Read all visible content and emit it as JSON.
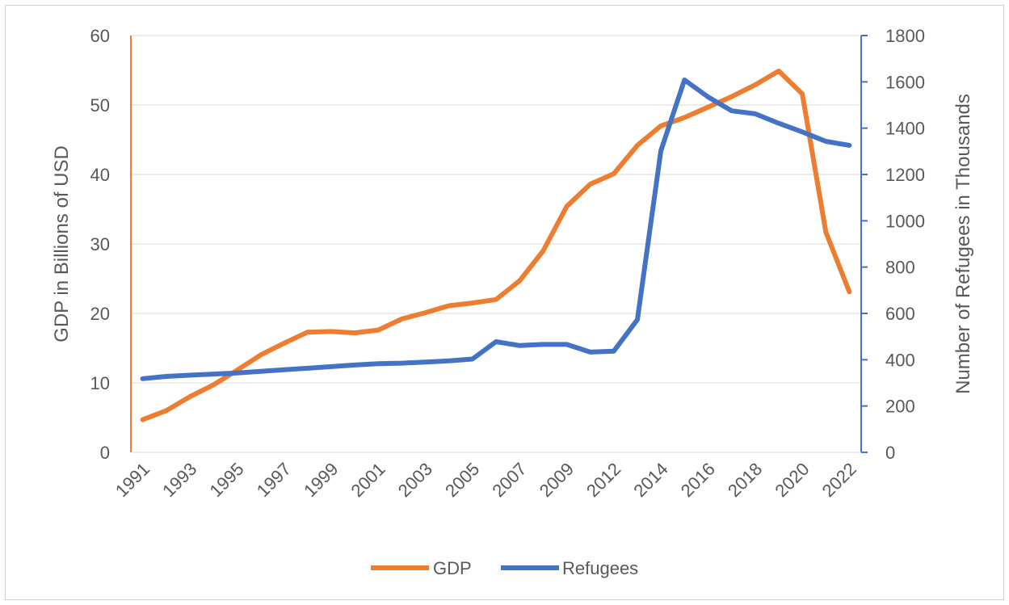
{
  "chart_data": {
    "type": "line",
    "x": [
      "1991",
      "1992",
      "1993",
      "1994",
      "1995",
      "1996",
      "1997",
      "1998",
      "1999",
      "2000",
      "2001",
      "2002",
      "2003",
      "2004",
      "2005",
      "2006",
      "2007",
      "2008",
      "2009",
      "2010",
      "2012",
      "2013",
      "2014",
      "2015",
      "2016",
      "2017",
      "2018",
      "2019",
      "2020",
      "2021",
      "2022"
    ],
    "x_tick_labels": [
      "1991",
      "1993",
      "1995",
      "1997",
      "1999",
      "2001",
      "2003",
      "2005",
      "2007",
      "2009",
      "2012",
      "2014",
      "2016",
      "2018",
      "2020",
      "2022"
    ],
    "series": [
      {
        "name": "GDP",
        "axis": "left",
        "color": "#ED7D31",
        "values": [
          4.7,
          6.0,
          8.0,
          9.7,
          11.8,
          14.0,
          15.7,
          17.3,
          17.4,
          17.2,
          17.6,
          19.2,
          20.1,
          21.1,
          21.5,
          22.0,
          24.7,
          29.0,
          35.4,
          38.6,
          40.1,
          44.2,
          47.0,
          48.2,
          49.7,
          51.2,
          52.9,
          54.9,
          51.6,
          31.7,
          23.1
        ]
      },
      {
        "name": "Refugees",
        "axis": "right",
        "color": "#4472C4",
        "values": [
          318,
          328,
          333,
          338,
          343,
          350,
          357,
          363,
          370,
          377,
          383,
          385,
          390,
          395,
          403,
          478,
          461,
          466,
          466,
          433,
          437,
          573,
          1303,
          1608,
          1535,
          1475,
          1462,
          1421,
          1384,
          1343,
          1326
        ]
      }
    ],
    "ylabel": "GDP in Billions of USD",
    "ylabel_right": "Number of Refugees in Thousands",
    "ylim": [
      0,
      60
    ],
    "ylim_right": [
      0,
      1800
    ],
    "y_ticks": [
      "0",
      "10",
      "20",
      "30",
      "40",
      "50",
      "60"
    ],
    "y_ticks_right": [
      "0",
      "200",
      "400",
      "600",
      "800",
      "1000",
      "1200",
      "1400",
      "1600",
      "1800"
    ],
    "grid": true,
    "legend": "bottom"
  }
}
